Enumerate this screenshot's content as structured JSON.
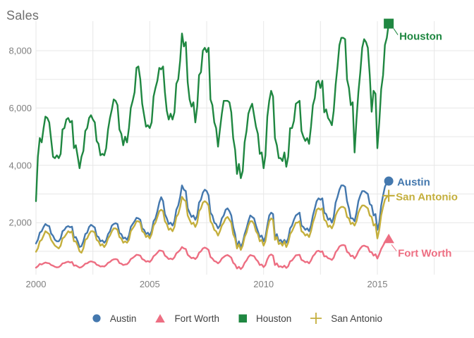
{
  "page": {
    "title": "Sales"
  },
  "colors": {
    "austin": "#4478ae",
    "fort_worth": "#ed6e82",
    "houston": "#1f8741",
    "san_antonio": "#c4af3d",
    "grid": "#e7e7e7",
    "tick_text": "#7f7f7f",
    "title_text": "#6e6e6e",
    "legend_text": "#404040",
    "background": "#ffffff"
  },
  "legend": {
    "items": [
      {
        "label": "Austin",
        "marker": "circle",
        "color_key": "austin"
      },
      {
        "label": "Fort Worth",
        "marker": "triangle",
        "color_key": "fort_worth"
      },
      {
        "label": "Houston",
        "marker": "square",
        "color_key": "houston"
      },
      {
        "label": "San Antonio",
        "marker": "plus",
        "color_key": "san_antonio"
      }
    ]
  },
  "chart_data": {
    "type": "line",
    "title": "Sales",
    "xlabel": "",
    "ylabel": "Sales",
    "x_unit": "monthly, Jan 2000 - Jul 2015",
    "x_start_year": 2000,
    "months_per_point": 1,
    "xlim": [
      2000,
      2019.25
    ],
    "ylim": [
      0,
      9500
    ],
    "grid": {
      "horizontal_every": 1000,
      "vertical_every_years": 2.5,
      "shown": true
    },
    "x_ticks": [
      {
        "value": 2000,
        "label": "2000"
      },
      {
        "value": 2005,
        "label": "2005"
      },
      {
        "value": 2010,
        "label": "2010"
      },
      {
        "value": 2015,
        "label": "2015"
      }
    ],
    "y_ticks": [
      {
        "value": 2000,
        "label": "2,000"
      },
      {
        "value": 4000,
        "label": "4,000"
      },
      {
        "value": 6000,
        "label": "6,000"
      },
      {
        "value": 8000,
        "label": "8,000"
      }
    ],
    "legend_position": "bottom-center",
    "end_labels_shown": true,
    "series": [
      {
        "name": "Austin",
        "end_label": "Austin",
        "marker": "circle",
        "color_key": "austin",
        "values": [
          1275,
          1400,
          1650,
          1700,
          1850,
          1950,
          1900,
          1880,
          1620,
          1540,
          1400,
          1350,
          1350,
          1450,
          1700,
          1750,
          1850,
          1880,
          1840,
          1860,
          1480,
          1500,
          1350,
          1150,
          1180,
          1350,
          1600,
          1650,
          1850,
          1925,
          1880,
          1830,
          1540,
          1500,
          1350,
          1380,
          1300,
          1380,
          1600,
          1700,
          1900,
          1950,
          1980,
          1950,
          1640,
          1600,
          1450,
          1480,
          1400,
          1550,
          1850,
          1950,
          2050,
          2170,
          2150,
          2100,
          1800,
          1750,
          1600,
          1650,
          1550,
          1700,
          2050,
          2150,
          2400,
          2700,
          2890,
          2750,
          2300,
          2150,
          1950,
          2000,
          1900,
          2050,
          2450,
          2600,
          2900,
          3300,
          3150,
          3100,
          2500,
          2350,
          2200,
          2250,
          2100,
          2250,
          2700,
          2800,
          3050,
          3150,
          3100,
          2950,
          2350,
          2250,
          2000,
          1950,
          1800,
          1900,
          2150,
          2250,
          2450,
          2500,
          2400,
          2250,
          1850,
          1600,
          1150,
          1350,
          1150,
          1300,
          1600,
          1800,
          2050,
          2250,
          2200,
          2150,
          1900,
          1700,
          1500,
          1550,
          1350,
          1500,
          1900,
          2250,
          2350,
          2300,
          1500,
          1600,
          1350,
          1400,
          1300,
          1400,
          1300,
          1450,
          1800,
          1900,
          2100,
          2250,
          2300,
          2350,
          1900,
          1850,
          1750,
          1800,
          1700,
          1900,
          2250,
          2500,
          2750,
          2850,
          2800,
          2850,
          2350,
          2300,
          2100,
          2150,
          2000,
          2200,
          2700,
          2900,
          3150,
          3300,
          3300,
          3250,
          2750,
          2500,
          2150,
          2150,
          2050,
          2350,
          2750,
          2950,
          3100,
          3100,
          3050,
          3000,
          2650,
          2600,
          2250,
          2300,
          1750,
          2000,
          2600,
          2950,
          3250,
          3400,
          3450
        ]
      },
      {
        "name": "Fort Worth",
        "end_label": "Fort Worth",
        "marker": "triangle",
        "color_key": "fort_worth",
        "values": [
          430,
          480,
          560,
          540,
          580,
          610,
          590,
          580,
          520,
          500,
          460,
          440,
          450,
          500,
          580,
          590,
          620,
          640,
          610,
          630,
          500,
          510,
          470,
          430,
          450,
          500,
          570,
          580,
          630,
          650,
          630,
          610,
          530,
          510,
          470,
          480,
          470,
          520,
          600,
          630,
          690,
          720,
          730,
          710,
          590,
          570,
          520,
          540,
          550,
          620,
          730,
          770,
          820,
          880,
          870,
          850,
          730,
          700,
          640,
          660,
          630,
          700,
          830,
          880,
          950,
          1030,
          1020,
          1000,
          850,
          800,
          730,
          750,
          720,
          790,
          930,
          980,
          1050,
          1150,
          1100,
          1080,
          880,
          820,
          760,
          780,
          730,
          800,
          950,
          1000,
          1100,
          1130,
          1100,
          1050,
          800,
          750,
          660,
          640,
          580,
          640,
          750,
          800,
          850,
          870,
          830,
          780,
          600,
          540,
          400,
          460,
          380,
          450,
          600,
          680,
          800,
          870,
          850,
          830,
          720,
          650,
          520,
          540,
          450,
          520,
          720,
          850,
          890,
          850,
          520,
          580,
          460,
          480,
          440,
          500,
          420,
          480,
          650,
          680,
          770,
          860,
          870,
          880,
          700,
          670,
          620,
          640,
          580,
          680,
          830,
          900,
          1000,
          1020,
          980,
          1000,
          820,
          830,
          760,
          740,
          700,
          780,
          970,
          1050,
          1170,
          1210,
          1220,
          1200,
          980,
          940,
          830,
          850,
          750,
          850,
          1000,
          1100,
          1180,
          1200,
          1170,
          1150,
          980,
          970,
          850,
          900,
          750,
          900,
          1080,
          1200,
          1320,
          1400,
          1430
        ]
      },
      {
        "name": "Houston",
        "end_label": "Houston",
        "marker": "square",
        "color_key": "houston",
        "values": [
          2750,
          4300,
          4950,
          4800,
          5300,
          5700,
          5650,
          5500,
          4900,
          4300,
          4250,
          4350,
          4250,
          4400,
          5250,
          5300,
          5600,
          5650,
          5500,
          5550,
          4600,
          4700,
          4300,
          3900,
          4300,
          4500,
          5200,
          5300,
          5650,
          5750,
          5600,
          5500,
          4850,
          4750,
          4350,
          4400,
          4350,
          4600,
          5250,
          5650,
          5950,
          6300,
          6250,
          6100,
          5250,
          5100,
          4700,
          5000,
          4800,
          5300,
          6000,
          6250,
          6550,
          7400,
          7450,
          7000,
          6150,
          5750,
          5350,
          5400,
          5300,
          5500,
          6400,
          6700,
          6950,
          7400,
          7350,
          7450,
          6550,
          5900,
          5600,
          5800,
          5600,
          5850,
          6850,
          7000,
          7650,
          8600,
          8150,
          8300,
          6900,
          6300,
          6050,
          6200,
          5500,
          6050,
          7150,
          7250,
          8000,
          8100,
          7950,
          8100,
          6300,
          6100,
          5500,
          5300,
          4650,
          5250,
          5800,
          6250,
          6250,
          6250,
          6200,
          5850,
          4950,
          4550,
          3700,
          4050,
          3550,
          3800,
          4800,
          5200,
          5800,
          6000,
          6150,
          5750,
          5350,
          5100,
          4400,
          4450,
          3900,
          4350,
          5700,
          6250,
          6600,
          6400,
          4950,
          4700,
          4250,
          4250,
          4150,
          4450,
          3950,
          4300,
          5300,
          5300,
          5550,
          6150,
          6200,
          6250,
          5200,
          5000,
          4850,
          4950,
          4750,
          5350,
          6100,
          6350,
          6900,
          6950,
          6700,
          6950,
          5850,
          5950,
          5650,
          5550,
          5400,
          5900,
          6800,
          7450,
          8200,
          8450,
          8450,
          8400,
          7000,
          6700,
          6100,
          6200,
          4450,
          5600,
          6550,
          7250,
          8100,
          8400,
          8300,
          8100,
          7150,
          5870,
          6600,
          6500,
          4600,
          5500,
          6650,
          7150,
          8200,
          8450,
          8945
        ]
      },
      {
        "name": "San Antonio",
        "end_label": "San Antonio",
        "marker": "plus",
        "color_key": "san_antonio",
        "values": [
          985,
          1100,
          1350,
          1400,
          1550,
          1700,
          1650,
          1600,
          1400,
          1300,
          1200,
          1150,
          1100,
          1200,
          1450,
          1500,
          1600,
          1700,
          1650,
          1700,
          1350,
          1350,
          1200,
          1000,
          950,
          1100,
          1400,
          1450,
          1600,
          1700,
          1700,
          1650,
          1400,
          1350,
          1200,
          1250,
          1150,
          1250,
          1450,
          1550,
          1700,
          1800,
          1800,
          1750,
          1500,
          1450,
          1300,
          1350,
          1300,
          1400,
          1700,
          1800,
          1900,
          2050,
          2050,
          2000,
          1700,
          1650,
          1500,
          1550,
          1450,
          1600,
          1900,
          2000,
          2200,
          2400,
          2450,
          2400,
          2050,
          1950,
          1750,
          1800,
          1700,
          1850,
          2200,
          2300,
          2550,
          2900,
          2800,
          2750,
          2250,
          2100,
          1950,
          2000,
          1850,
          2000,
          2400,
          2500,
          2700,
          2750,
          2700,
          2600,
          2050,
          1950,
          1750,
          1700,
          1550,
          1700,
          1900,
          2000,
          2150,
          2200,
          2100,
          2000,
          1600,
          1450,
          1100,
          1250,
          1050,
          1200,
          1500,
          1650,
          1900,
          2050,
          2050,
          1950,
          1700,
          1600,
          1350,
          1400,
          1200,
          1350,
          1750,
          2050,
          2150,
          2100,
          1400,
          1500,
          1250,
          1300,
          1200,
          1350,
          1150,
          1300,
          1600,
          1700,
          1850,
          2000,
          2000,
          2050,
          1700,
          1650,
          1550,
          1600,
          1500,
          1700,
          2000,
          2200,
          2450,
          2500,
          2450,
          2500,
          2100,
          2050,
          1850,
          1900,
          1800,
          1950,
          2250,
          2400,
          2500,
          2550,
          2550,
          2500,
          2200,
          2150,
          1950,
          2000,
          1900,
          2050,
          2350,
          2500,
          2600,
          2600,
          2550,
          2500,
          2250,
          2200,
          1900,
          1950,
          1450,
          1750,
          2250,
          2550,
          2800,
          2900,
          2940
        ]
      }
    ]
  }
}
